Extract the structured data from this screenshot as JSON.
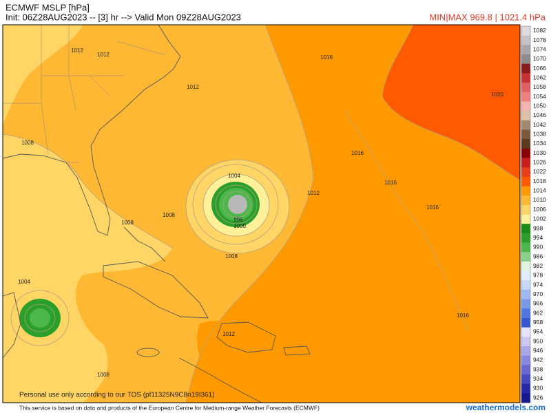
{
  "header": {
    "title": "ECMWF MSLP [hPa]",
    "init_line": "Init: 06Z28AUG2023 -- [3] hr --> Valid Mon 09Z28AUG2023",
    "minmax": "MIN|MAX 969.8 | 1021.4 hPa"
  },
  "map": {
    "contour_labels": [
      "1012",
      "1012",
      "1012",
      "1016",
      "1020",
      "1008",
      "1004",
      "1016",
      "1016",
      "1012",
      "1016",
      "1008",
      "1008",
      "996",
      "1000",
      "1008",
      "1004",
      "1016",
      "1012",
      "1008"
    ],
    "watermark": "Personal use only according to our TOS (pf11325N9C8n19I361)"
  },
  "colorbar": {
    "labels": [
      1082,
      1078,
      1074,
      1070,
      1066,
      1062,
      1058,
      1054,
      1050,
      1046,
      1042,
      1038,
      1034,
      1030,
      1026,
      1022,
      1018,
      1014,
      1010,
      1006,
      1002,
      998,
      994,
      990,
      986,
      982,
      978,
      974,
      970,
      966,
      962,
      958,
      954,
      950,
      946,
      942,
      938,
      934,
      930,
      926
    ],
    "colors": [
      "#dcdcdc",
      "#c4c4c4",
      "#a8a8a8",
      "#8c8c8c",
      "#8b1a1a",
      "#c83232",
      "#e06060",
      "#f08080",
      "#f4b4b4",
      "#dcc0a8",
      "#a08a70",
      "#7a5a3a",
      "#5a3a1a",
      "#8b0000",
      "#c81e1e",
      "#e83e1a",
      "#ff5a00",
      "#ff9900",
      "#ffb833",
      "#ffd566",
      "#fff099",
      "#1a8c1a",
      "#2aa02a",
      "#4cb84c",
      "#8ad08a",
      "#e0f4e0",
      "#e0f0ff",
      "#c8d8f8",
      "#a0b8f0",
      "#7898e8",
      "#5078e0",
      "#3858d0",
      "#e4e4fc",
      "#c8c8f0",
      "#a8a8e8",
      "#8888e0",
      "#6868d0",
      "#4848c0",
      "#2828a8",
      "#181890"
    ]
  },
  "footer": {
    "credit": "This service is based on data and products of the European Centre for Medium-range Weather Forecasts (ECMWF)",
    "site": "weathermodels.com"
  }
}
